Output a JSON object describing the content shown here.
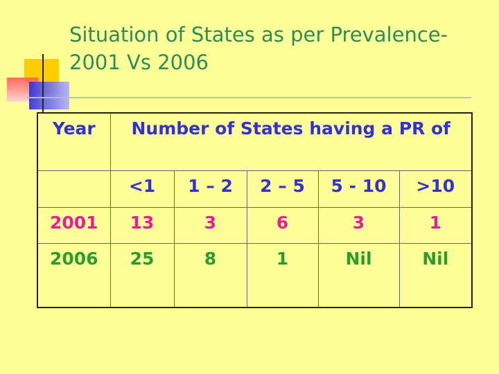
{
  "title": [
    "Situation of States as per Prevalence-",
    "2001 Vs 2006"
  ],
  "table": {
    "header": [
      "Year",
      "Number of States having a PR of"
    ],
    "subheader": [
      "<1",
      "1 – 2",
      "2 – 5",
      "5 - 10",
      ">10"
    ],
    "rows": [
      [
        "2001",
        13,
        3,
        6,
        3,
        1
      ],
      [
        "2006",
        25,
        8,
        1,
        "Nil",
        "Nil"
      ]
    ]
  }
}
